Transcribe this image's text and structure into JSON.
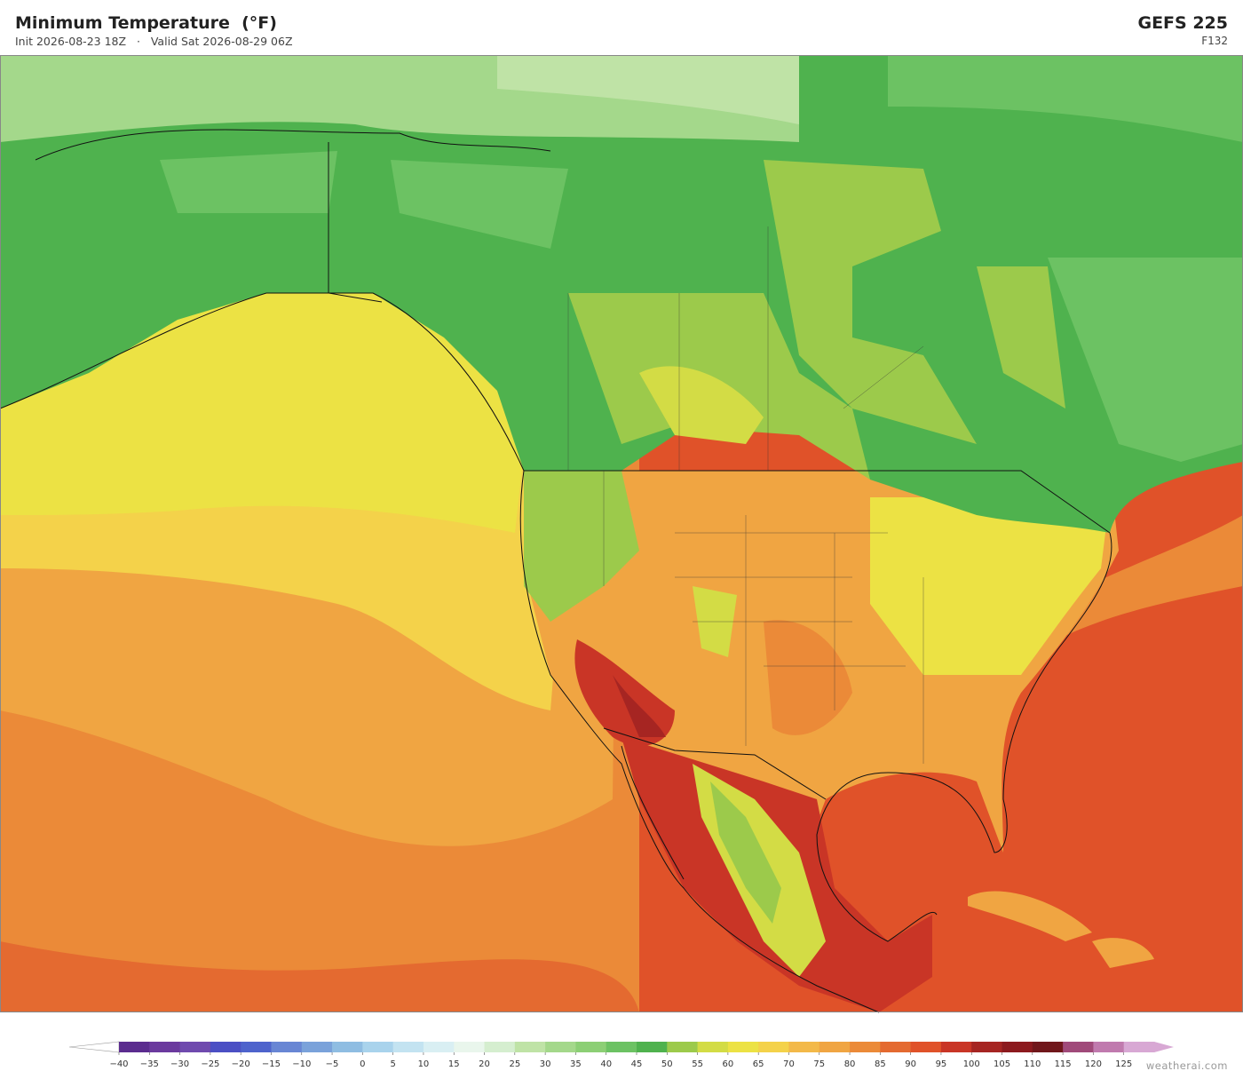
{
  "header": {
    "title": "Minimum Temperature  (°F)",
    "subtitle": "Init 2026-08-23 18Z   ·   Valid Sat 2026-08-29 06Z",
    "model": "GEFS  225",
    "forecast_hour": "F132"
  },
  "colorbar": {
    "ticks": [
      {
        "value": -40,
        "label": "−40"
      },
      {
        "value": -35,
        "label": "−35"
      },
      {
        "value": -30,
        "label": "−30"
      },
      {
        "value": -25,
        "label": "−25"
      },
      {
        "value": -20,
        "label": "−20"
      },
      {
        "value": -15,
        "label": "−15"
      },
      {
        "value": -10,
        "label": "−10"
      },
      {
        "value": -5,
        "label": "−5"
      },
      0,
      5,
      10,
      15,
      20,
      25,
      30,
      35,
      40,
      45,
      50,
      55,
      60,
      65,
      70,
      75,
      80,
      85,
      90,
      95,
      100,
      105,
      110,
      115,
      120,
      125
    ],
    "range": [
      -40,
      130
    ],
    "colors": [
      "#5b2c8f",
      "#6b3a9e",
      "#6f4aae",
      "#4b4fc4",
      "#4e63cc",
      "#6886d4",
      "#7aa2da",
      "#8fbde2",
      "#a9d3ec",
      "#c3e3f1",
      "#d9eff3",
      "#e9f6ec",
      "#d5eecf",
      "#bfe3a6",
      "#a4d88b",
      "#8ccf75",
      "#6cc263",
      "#4fb24e",
      "#9cca4b",
      "#d3dc45",
      "#ece244",
      "#f4d24a",
      "#f3b949",
      "#f0a542",
      "#eb8a38",
      "#e46a30",
      "#e05229",
      "#c93526",
      "#a62522",
      "#8c1a1e",
      "#70171b",
      "#a04a7a",
      "#c07aae",
      "#d8a8d4"
    ],
    "under_color": "#ffffff",
    "over_color": "#d8a8d4"
  },
  "watermark": "weatherai.com"
}
